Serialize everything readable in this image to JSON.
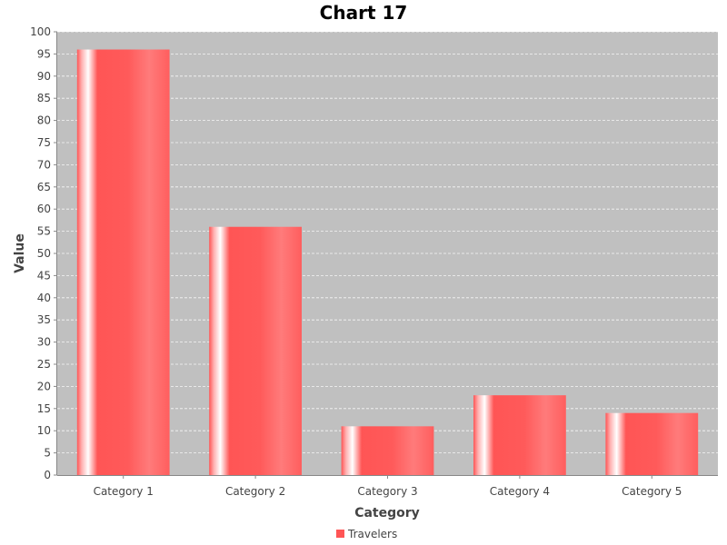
{
  "chart_data": {
    "type": "bar",
    "title": "Chart 17",
    "xlabel": "Category",
    "ylabel": "Value",
    "categories": [
      "Category 1",
      "Category 2",
      "Category 3",
      "Category 4",
      "Category 5"
    ],
    "series": [
      {
        "name": "Travelers",
        "values": [
          96,
          56,
          11,
          18,
          14
        ]
      }
    ],
    "ylim": [
      0,
      100
    ],
    "ytick_step": 5,
    "grid": true,
    "legend_position": "bottom",
    "colors": {
      "bar": "#ff5555",
      "plot_background": "#c0c0c0",
      "gridline": "#ffffff"
    }
  }
}
